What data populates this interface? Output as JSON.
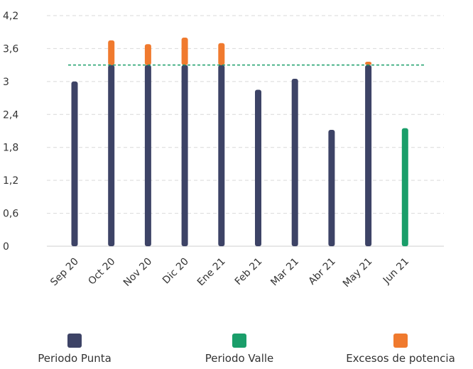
{
  "chart_data": {
    "type": "bar",
    "stacked": true,
    "categories": [
      "Sep 20",
      "Oct 20",
      "Nov 20",
      "Dic 20",
      "Ene 21",
      "Feb 21",
      "Mar 21",
      "Abr 21",
      "May 21",
      "Jun 21"
    ],
    "series": [
      {
        "name": "Periodo Punta",
        "color": "#3d4366",
        "values": [
          3.0,
          3.3,
          3.3,
          3.3,
          3.3,
          2.85,
          3.05,
          2.12,
          3.3,
          0
        ]
      },
      {
        "name": "Periodo Valle",
        "color": "#1a9e6a",
        "values": [
          0,
          0,
          0,
          0,
          0,
          0,
          0,
          0,
          0,
          2.15
        ]
      },
      {
        "name": "Excesos de potencia",
        "color": "#f07a2e",
        "values": [
          0,
          0.45,
          0.38,
          0.5,
          0.4,
          0,
          0,
          0,
          0.06,
          0
        ]
      }
    ],
    "reference_line": {
      "value": 3.3,
      "color": "#1a9e6a",
      "style": "dashed"
    },
    "ylim": [
      0,
      4.2
    ],
    "yticks": [
      "0",
      "0,6",
      "1,2",
      "1,8",
      "2,4",
      "3",
      "3,6",
      "4,2"
    ],
    "grid": true,
    "legend_position": "bottom",
    "title": "",
    "xlabel": "",
    "ylabel": ""
  }
}
